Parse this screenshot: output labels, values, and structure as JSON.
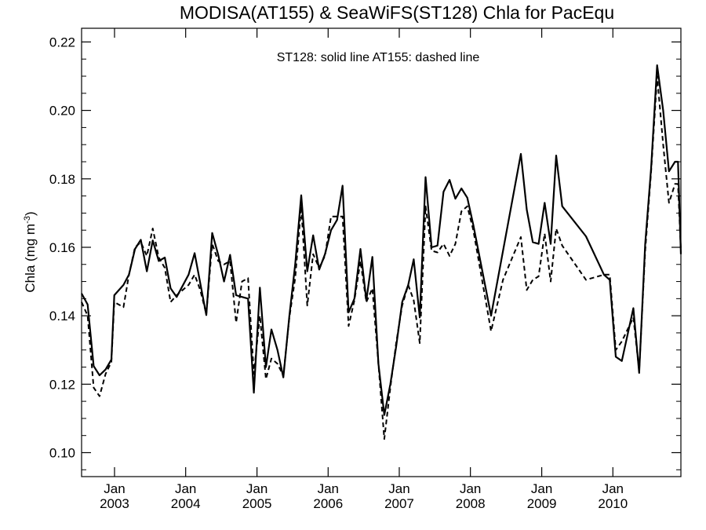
{
  "chart_data": {
    "type": "line",
    "title": "MODISA(AT155) & SeaWiFS(ST128)  Chla for PacEqu",
    "annotation": "ST128: solid line   AT155: dashed line",
    "ylabel": "Chla (mg m",
    "ylabel_superscript": "-3",
    "ylabel_close": ")",
    "ylim": [
      0.093,
      0.224
    ],
    "yticks": [
      0.1,
      0.12,
      0.14,
      0.16,
      0.18,
      0.2,
      0.22
    ],
    "ytick_labels": [
      "0.10",
      "0.12",
      "0.14",
      "0.16",
      "0.18",
      "0.20",
      "0.22"
    ],
    "x_axis": {
      "type": "date",
      "start": "2002-07-16",
      "end": "2010-12-16",
      "tick_top": "Jan"
    },
    "x_tick_dates": [
      "2003-01-01",
      "2004-01-01",
      "2005-01-01",
      "2006-01-01",
      "2007-01-01",
      "2008-01-01",
      "2009-01-01",
      "2010-01-01"
    ],
    "x_tick_years": [
      "2003",
      "2004",
      "2005",
      "2006",
      "2007",
      "2008",
      "2009",
      "2010"
    ],
    "grid": false,
    "series": [
      {
        "key": "st128",
        "style": "solid",
        "color": "#000000",
        "points": [
          [
            "2002-07-16",
            0.1465
          ],
          [
            "2002-08-16",
            0.1433
          ],
          [
            "2002-09-16",
            0.1253
          ],
          [
            "2002-10-16",
            0.1226
          ],
          [
            "2002-11-16",
            0.1243
          ],
          [
            "2002-12-16",
            0.1272
          ],
          [
            "2002-12-31",
            0.146
          ],
          [
            "2003-02-16",
            0.149
          ],
          [
            "2003-03-16",
            0.152
          ],
          [
            "2003-04-16",
            0.1595
          ],
          [
            "2003-05-16",
            0.1622
          ],
          [
            "2003-06-16",
            0.153
          ],
          [
            "2003-07-16",
            0.162
          ],
          [
            "2003-08-16",
            0.156
          ],
          [
            "2003-09-16",
            0.157
          ],
          [
            "2003-10-16",
            0.148
          ],
          [
            "2003-11-16",
            0.1455
          ],
          [
            "2004-01-16",
            0.152
          ],
          [
            "2004-02-16",
            0.1583
          ],
          [
            "2004-03-16",
            0.1495
          ],
          [
            "2004-04-16",
            0.1402
          ],
          [
            "2004-05-16",
            0.1642
          ],
          [
            "2004-06-16",
            0.1578
          ],
          [
            "2004-07-16",
            0.15
          ],
          [
            "2004-08-16",
            0.1578
          ],
          [
            "2004-09-16",
            0.146
          ],
          [
            "2004-10-16",
            0.1455
          ],
          [
            "2004-11-16",
            0.145
          ],
          [
            "2004-12-16",
            0.1175
          ],
          [
            "2005-01-16",
            0.1482
          ],
          [
            "2005-02-16",
            0.125
          ],
          [
            "2005-03-16",
            0.136
          ],
          [
            "2005-04-16",
            0.13
          ],
          [
            "2005-05-16",
            0.122
          ],
          [
            "2005-06-16",
            0.14
          ],
          [
            "2005-07-16",
            0.155
          ],
          [
            "2005-08-16",
            0.1752
          ],
          [
            "2005-09-16",
            0.153
          ],
          [
            "2005-10-16",
            0.1635
          ],
          [
            "2005-11-16",
            0.1535
          ],
          [
            "2005-12-16",
            0.158
          ],
          [
            "2006-01-16",
            0.165
          ],
          [
            "2006-02-16",
            0.168
          ],
          [
            "2006-03-16",
            0.178
          ],
          [
            "2006-04-16",
            0.141
          ],
          [
            "2006-05-16",
            0.145
          ],
          [
            "2006-06-16",
            0.1595
          ],
          [
            "2006-07-16",
            0.1445
          ],
          [
            "2006-08-16",
            0.1572
          ],
          [
            "2006-09-16",
            0.126
          ],
          [
            "2006-10-16",
            0.111
          ],
          [
            "2006-11-16",
            0.12
          ],
          [
            "2006-12-16",
            0.131
          ],
          [
            "2007-01-16",
            0.144
          ],
          [
            "2007-02-16",
            0.149
          ],
          [
            "2007-03-16",
            0.1565
          ],
          [
            "2007-04-16",
            0.1395
          ],
          [
            "2007-05-16",
            0.1805
          ],
          [
            "2007-06-16",
            0.16
          ],
          [
            "2007-07-16",
            0.1605
          ],
          [
            "2007-08-16",
            0.1762
          ],
          [
            "2007-09-16",
            0.1797
          ],
          [
            "2007-10-16",
            0.1742
          ],
          [
            "2007-11-16",
            0.1772
          ],
          [
            "2007-12-16",
            0.1745
          ],
          [
            "2008-01-16",
            0.1665
          ],
          [
            "2008-04-16",
            0.14
          ],
          [
            "2008-09-16",
            0.1873
          ],
          [
            "2008-10-16",
            0.171
          ],
          [
            "2008-11-16",
            0.1615
          ],
          [
            "2008-12-16",
            0.161
          ],
          [
            "2009-01-16",
            0.173
          ],
          [
            "2009-02-16",
            0.161
          ],
          [
            "2009-03-16",
            0.1868
          ],
          [
            "2009-04-16",
            0.172
          ],
          [
            "2009-08-16",
            0.1632
          ],
          [
            "2009-11-16",
            0.152
          ],
          [
            "2009-12-16",
            0.1505
          ],
          [
            "2010-01-16",
            0.128
          ],
          [
            "2010-02-16",
            0.1268
          ],
          [
            "2010-04-16",
            0.1422
          ],
          [
            "2010-05-16",
            0.1233
          ],
          [
            "2010-06-16",
            0.161
          ],
          [
            "2010-07-16",
            0.183
          ],
          [
            "2010-08-16",
            0.2132
          ],
          [
            "2010-09-16",
            0.2
          ],
          [
            "2010-10-16",
            0.1822
          ],
          [
            "2010-11-16",
            0.185
          ],
          [
            "2010-12-01",
            0.185
          ],
          [
            "2010-12-16",
            0.158
          ]
        ]
      },
      {
        "key": "at155",
        "style": "dashed",
        "color": "#000000",
        "points": [
          [
            "2002-07-16",
            0.144
          ],
          [
            "2002-08-16",
            0.14
          ],
          [
            "2002-09-16",
            0.119
          ],
          [
            "2002-10-16",
            0.1165
          ],
          [
            "2002-11-16",
            0.123
          ],
          [
            "2002-12-16",
            0.1265
          ],
          [
            "2002-12-31",
            0.144
          ],
          [
            "2003-02-16",
            0.1425
          ],
          [
            "2003-03-16",
            0.152
          ],
          [
            "2003-04-16",
            0.16
          ],
          [
            "2003-05-16",
            0.1615
          ],
          [
            "2003-06-16",
            0.1575
          ],
          [
            "2003-07-16",
            0.1655
          ],
          [
            "2003-08-16",
            0.157
          ],
          [
            "2003-09-16",
            0.154
          ],
          [
            "2003-10-16",
            0.144
          ],
          [
            "2003-11-16",
            0.146
          ],
          [
            "2004-01-16",
            0.149
          ],
          [
            "2004-02-16",
            0.152
          ],
          [
            "2004-03-16",
            0.1475
          ],
          [
            "2004-04-16",
            0.1405
          ],
          [
            "2004-05-16",
            0.161
          ],
          [
            "2004-06-16",
            0.156
          ],
          [
            "2004-07-16",
            0.155
          ],
          [
            "2004-08-16",
            0.156
          ],
          [
            "2004-09-16",
            0.138
          ],
          [
            "2004-10-16",
            0.15
          ],
          [
            "2004-11-16",
            0.151
          ],
          [
            "2004-12-16",
            0.123
          ],
          [
            "2005-01-16",
            0.14
          ],
          [
            "2005-02-16",
            0.1215
          ],
          [
            "2005-03-16",
            0.1275
          ],
          [
            "2005-04-16",
            0.126
          ],
          [
            "2005-05-16",
            0.1225
          ],
          [
            "2005-06-16",
            0.1395
          ],
          [
            "2005-07-16",
            0.151
          ],
          [
            "2005-08-16",
            0.172
          ],
          [
            "2005-09-16",
            0.143
          ],
          [
            "2005-10-16",
            0.158
          ],
          [
            "2005-11-16",
            0.154
          ],
          [
            "2005-12-16",
            0.1575
          ],
          [
            "2006-01-16",
            0.169
          ],
          [
            "2006-02-16",
            0.169
          ],
          [
            "2006-03-16",
            0.169
          ],
          [
            "2006-04-16",
            0.137
          ],
          [
            "2006-05-16",
            0.1445
          ],
          [
            "2006-06-16",
            0.156
          ],
          [
            "2006-07-16",
            0.144
          ],
          [
            "2006-08-16",
            0.148
          ],
          [
            "2006-09-16",
            0.126
          ],
          [
            "2006-10-16",
            0.104
          ],
          [
            "2006-11-16",
            0.119
          ],
          [
            "2006-12-16",
            0.132
          ],
          [
            "2007-01-16",
            0.143
          ],
          [
            "2007-02-16",
            0.149
          ],
          [
            "2007-03-16",
            0.1445
          ],
          [
            "2007-04-16",
            0.132
          ],
          [
            "2007-05-16",
            0.172
          ],
          [
            "2007-06-16",
            0.159
          ],
          [
            "2007-07-16",
            0.1585
          ],
          [
            "2007-08-16",
            0.161
          ],
          [
            "2007-09-16",
            0.1575
          ],
          [
            "2007-10-16",
            0.161
          ],
          [
            "2007-11-16",
            0.1705
          ],
          [
            "2007-12-16",
            0.172
          ],
          [
            "2008-01-16",
            0.165
          ],
          [
            "2008-04-16",
            0.1355
          ],
          [
            "2008-06-16",
            0.1505
          ],
          [
            "2008-09-16",
            0.163
          ],
          [
            "2008-10-16",
            0.1475
          ],
          [
            "2008-11-16",
            0.1505
          ],
          [
            "2008-12-16",
            0.1515
          ],
          [
            "2009-01-16",
            0.164
          ],
          [
            "2009-02-16",
            0.15
          ],
          [
            "2009-03-16",
            0.1655
          ],
          [
            "2009-04-16",
            0.1605
          ],
          [
            "2009-08-16",
            0.1505
          ],
          [
            "2009-11-16",
            0.152
          ],
          [
            "2009-12-16",
            0.152
          ],
          [
            "2010-01-16",
            0.13
          ],
          [
            "2010-02-16",
            0.1325
          ],
          [
            "2010-04-16",
            0.1395
          ],
          [
            "2010-05-16",
            0.124
          ],
          [
            "2010-06-16",
            0.159
          ],
          [
            "2010-07-16",
            0.182
          ],
          [
            "2010-08-16",
            0.21
          ],
          [
            "2010-09-16",
            0.19
          ],
          [
            "2010-10-16",
            0.173
          ],
          [
            "2010-11-16",
            0.1785
          ],
          [
            "2010-12-01",
            0.1785
          ],
          [
            "2010-12-16",
            0.159
          ]
        ]
      }
    ]
  }
}
